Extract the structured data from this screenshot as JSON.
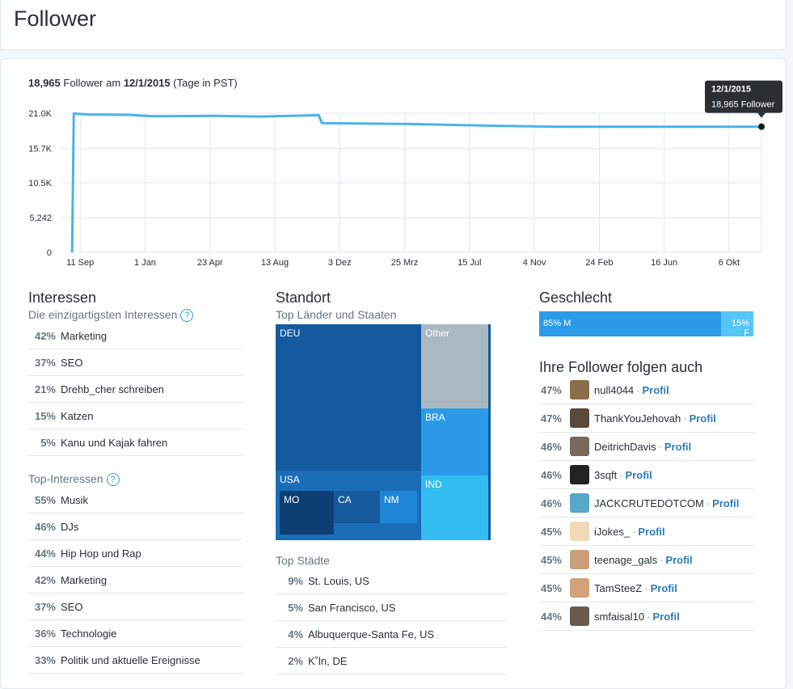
{
  "page": {
    "title": "Follower"
  },
  "summary": {
    "count": "18,965",
    "text1": "Follower am",
    "date": "12/1/2015",
    "text2": "(Tage in PST)"
  },
  "tooltip": {
    "date": "12/1/2015",
    "value": "18,965 Follower"
  },
  "colors": {
    "line": "#4ab3ea",
    "grid": "#e1e8ed",
    "accent": "#2b9be8",
    "link": "#2b7bb9"
  },
  "chart_data": {
    "type": "line",
    "title": "",
    "xlabel": "",
    "ylabel": "",
    "y_tick_labels": [
      "21.0K",
      "15.7K",
      "10.5K",
      "5,242",
      "0"
    ],
    "y_ticks": [
      21000,
      15700,
      10500,
      5242,
      0
    ],
    "ylim": [
      0,
      21000
    ],
    "x_tick_labels": [
      "11 Sep",
      "1 Jan",
      "23 Apr",
      "13 Aug",
      "3 Dez",
      "25 Mrz",
      "15 Jul",
      "4 Nov",
      "24 Feb",
      "16 Jun",
      "6 Okt"
    ],
    "x_tick_dates": [
      "2012-09-11",
      "2013-01-01",
      "2013-04-23",
      "2013-08-13",
      "2013-12-03",
      "2014-03-25",
      "2014-07-15",
      "2014-11-04",
      "2015-02-24",
      "2015-06-16",
      "2015-10-06"
    ],
    "grid": true,
    "series": [
      {
        "points": [
          [
            "2012-08-28",
            0
          ],
          [
            "2012-08-31",
            20950
          ],
          [
            "2012-09-25",
            20800
          ],
          [
            "2012-12-01",
            20750
          ],
          [
            "2013-01-15",
            20550
          ],
          [
            "2013-04-23",
            20600
          ],
          [
            "2013-07-20",
            20500
          ],
          [
            "2013-10-28",
            20700
          ],
          [
            "2013-11-02",
            19500
          ],
          [
            "2014-04-15",
            19350
          ],
          [
            "2014-09-01",
            19100
          ],
          [
            "2014-12-15",
            18960
          ],
          [
            "2015-06-01",
            18960
          ],
          [
            "2015-12-01",
            18965
          ]
        ]
      }
    ]
  },
  "interests": {
    "title": "Interessen",
    "subtitle": "Die einzigartigsten Interessen",
    "items": [
      {
        "pct": "42%",
        "label": "Marketing"
      },
      {
        "pct": "37%",
        "label": "SEO"
      },
      {
        "pct": "21%",
        "label": "Drehb_cher schreiben"
      },
      {
        "pct": "15%",
        "label": "Katzen"
      },
      {
        "pct": "5%",
        "label": "Kanu und Kajak fahren"
      }
    ]
  },
  "top_interests": {
    "subtitle": "Top-Interessen",
    "items": [
      {
        "pct": "55%",
        "label": "Musik"
      },
      {
        "pct": "46%",
        "label": "DJs"
      },
      {
        "pct": "44%",
        "label": "Hip Hop und Rap"
      },
      {
        "pct": "42%",
        "label": "Marketing"
      },
      {
        "pct": "37%",
        "label": "SEO"
      },
      {
        "pct": "36%",
        "label": "Technologie"
      },
      {
        "pct": "33%",
        "label": "Politik und aktuelle Ereignisse"
      }
    ]
  },
  "location": {
    "title": "Standort",
    "subtitle": "Top Länder und Staaten",
    "treemap": [
      {
        "label": "DEU",
        "color": "#135a9f"
      },
      {
        "label": "USA",
        "color": "#1b6db8"
      },
      {
        "label": "MO",
        "color": "#0e3f73"
      },
      {
        "label": "CA",
        "color": "#155a9c"
      },
      {
        "label": "NM",
        "color": "#1f86d6"
      },
      {
        "label": "Other",
        "color": "#aab8c2"
      },
      {
        "label": "BRA",
        "color": "#2b9be8"
      },
      {
        "label": "IND",
        "color": "#33bdf0"
      }
    ],
    "cities_title": "Top Städte",
    "cities": [
      {
        "pct": "9%",
        "label": "St. Louis, US"
      },
      {
        "pct": "5%",
        "label": "San Francisco, US"
      },
      {
        "pct": "4%",
        "label": "Albuquerque-Santa Fe, US"
      },
      {
        "pct": "2%",
        "label": "K˚ln, DE"
      }
    ]
  },
  "gender": {
    "title": "Geschlecht",
    "male": "85% M",
    "female": "15% F"
  },
  "also_follow": {
    "title": "Ihre Follower folgen auch",
    "profile_label": "Profil",
    "items": [
      {
        "pct": "47%",
        "name": "null4044",
        "avatar_color": "#8a6d4b"
      },
      {
        "pct": "47%",
        "name": "ThankYouJehovah",
        "avatar_color": "#5a4a3a"
      },
      {
        "pct": "46%",
        "name": "DeitrichDavis",
        "avatar_color": "#7a6a5a"
      },
      {
        "pct": "46%",
        "name": "3sqft",
        "avatar_color": "#222222"
      },
      {
        "pct": "46%",
        "name": "JACKCRUTEDOTCOM",
        "avatar_color": "#55a8c8"
      },
      {
        "pct": "45%",
        "name": "iJokes_",
        "avatar_color": "#f0d9b5"
      },
      {
        "pct": "45%",
        "name": "teenage_gals",
        "avatar_color": "#c9a07a"
      },
      {
        "pct": "45%",
        "name": "TamSteeZ",
        "avatar_color": "#d4a27a"
      },
      {
        "pct": "44%",
        "name": "smfaisal10",
        "avatar_color": "#6a5a4a"
      }
    ]
  }
}
